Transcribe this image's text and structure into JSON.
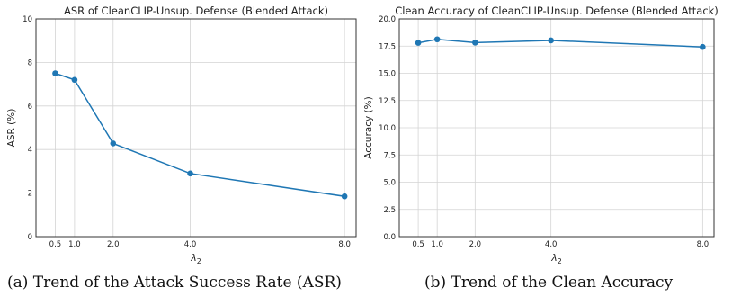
{
  "chart_data": [
    {
      "type": "line",
      "title": "ASR of CleanCLIP-Unsup. Defense (Blended Attack)",
      "xlabel": "λ2",
      "ylabel": "ASR (%)",
      "x": [
        0.5,
        1.0,
        2.0,
        4.0,
        8.0
      ],
      "x_tick_labels": [
        "0.5",
        "1.0",
        "2.0",
        "4.0",
        "8.0"
      ],
      "series": [
        {
          "values": [
            7.5,
            7.2,
            4.28,
            2.9,
            1.85
          ]
        }
      ],
      "xlim": [
        0.0,
        8.3
      ],
      "ylim": [
        0,
        10
      ],
      "y_ticks": [
        0,
        2,
        4,
        6,
        8,
        10
      ],
      "y_tick_labels": [
        "0",
        "2",
        "4",
        "6",
        "8",
        "10"
      ],
      "grid": true,
      "line_color": "#1f77b4"
    },
    {
      "type": "line",
      "title": "Clean Accuracy of CleanCLIP-Unsup. Defense (Blended Attack)",
      "xlabel": "λ2",
      "ylabel": "Accuracy (%)",
      "x": [
        0.5,
        1.0,
        2.0,
        4.0,
        8.0
      ],
      "x_tick_labels": [
        "0.5",
        "1.0",
        "2.0",
        "4.0",
        "8.0"
      ],
      "series": [
        {
          "values": [
            17.8,
            18.12,
            17.82,
            18.02,
            17.42
          ]
        }
      ],
      "xlim": [
        0.0,
        8.3
      ],
      "ylim": [
        0,
        20
      ],
      "y_ticks": [
        0,
        2.5,
        5,
        7.5,
        10,
        12.5,
        15,
        17.5,
        20
      ],
      "y_tick_labels": [
        "0.0",
        "2.5",
        "5.0",
        "7.5",
        "10.0",
        "12.5",
        "15.0",
        "17.5",
        "20.0"
      ],
      "grid": true,
      "line_color": "#1f77b4"
    }
  ],
  "captions": {
    "a": "(a)  Trend of the Attack Success Rate (ASR)",
    "b": "(b)  Trend of the Clean Accuracy"
  }
}
